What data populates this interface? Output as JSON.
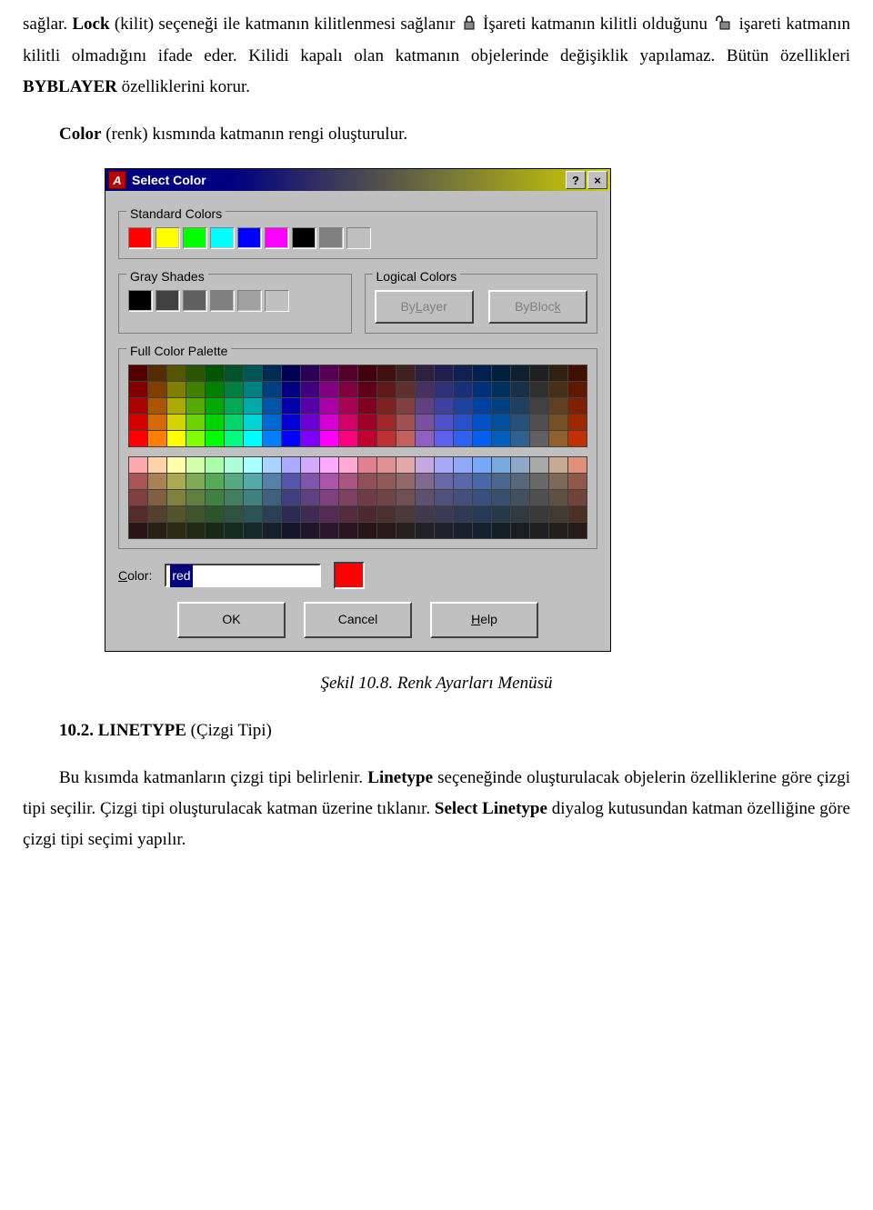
{
  "text": {
    "p1_a": "sağlar. ",
    "p1_bold1": "Lock",
    "p1_b": " (kilit) seçeneği ile katmanın kilitlenmesi sağlanır ",
    "p1_c": " İşareti katmanın kilitli olduğunu ",
    "p1_d": " işareti katmanın kilitli olmadığını ifade eder. Kilidi kapalı olan katmanın objelerinde değişiklik yapılamaz. Bütün özellikleri ",
    "p1_bold2": "BYBLAYER",
    "p1_e": " özelliklerini korur.",
    "p2_a": "Color",
    "p2_b": " (renk) kısmında katmanın rengi oluşturulur.",
    "caption": "Şekil 10.8. Renk Ayarları Menüsü",
    "h1_a": "10.2. LINETYPE",
    "h1_b": " (Çizgi Tipi)",
    "p3_a": "Bu kısımda katmanların çizgi tipi belirlenir. ",
    "p3_bold1": "Linetype",
    "p3_b": " seçeneğinde oluşturulacak objelerin özelliklerine göre çizgi tipi seçilir. Çizgi tipi oluşturulacak katman üzerine tıklanır. ",
    "p3_bold2": "Select Linetype",
    "p3_c": " diyalog kutusundan katman özelliğine göre çizgi tipi seçimi yapılır."
  },
  "dialog": {
    "title": "Select Color",
    "app_glyph": "A",
    "help_btn": "?",
    "close_btn": "×",
    "group_standard": "Standard Colors",
    "group_gray": "Gray Shades",
    "group_logical": "Logical Colors",
    "group_full": "Full Color Palette",
    "bylayer": "ByLayer",
    "byblock": "ByBlock",
    "color_label": "Color:",
    "color_value": "red",
    "ok": "OK",
    "cancel": "Cancel",
    "help": "Help",
    "standard_colors": [
      "#ff0000",
      "#ffff00",
      "#00ff00",
      "#00ffff",
      "#0000ff",
      "#ff00ff",
      "#000000",
      "#808080",
      "#c0c0c0"
    ],
    "gray_shades": [
      "#000000",
      "#404040",
      "#606060",
      "#808080",
      "#a0a0a0",
      "#c0c0c0"
    ],
    "preview_color": "#ff0000",
    "palette_top": [
      [
        "#550000",
        "#552b00",
        "#555500",
        "#2b5500",
        "#005500",
        "#00552b",
        "#005555",
        "#002b55",
        "#000055",
        "#2b0055",
        "#550055",
        "#55002b",
        "#400010",
        "#401010",
        "#402020",
        "#302040",
        "#202050",
        "#102050",
        "#002050",
        "#002040",
        "#102030",
        "#202020",
        "#302010",
        "#401000"
      ],
      [
        "#800000",
        "#804000",
        "#808000",
        "#408000",
        "#008000",
        "#008040",
        "#008080",
        "#004080",
        "#000080",
        "#400080",
        "#800080",
        "#800040",
        "#600018",
        "#601818",
        "#603030",
        "#483060",
        "#303078",
        "#183078",
        "#003078",
        "#003060",
        "#183048",
        "#303030",
        "#483018",
        "#601800"
      ],
      [
        "#aa0000",
        "#aa5500",
        "#aaaa00",
        "#55aa00",
        "#00aa00",
        "#00aa55",
        "#00aaaa",
        "#0055aa",
        "#0000aa",
        "#5500aa",
        "#aa00aa",
        "#aa0055",
        "#800020",
        "#802020",
        "#804040",
        "#604080",
        "#4040a0",
        "#2040a0",
        "#0040a0",
        "#004080",
        "#204060",
        "#404040",
        "#604020",
        "#802000"
      ],
      [
        "#d40000",
        "#d46a00",
        "#d4d400",
        "#6ad400",
        "#00d400",
        "#00d46a",
        "#00d4d4",
        "#006ad4",
        "#0000d4",
        "#6a00d4",
        "#d400d4",
        "#d4006a",
        "#a00028",
        "#a02828",
        "#a05050",
        "#7850a0",
        "#5050c8",
        "#2850c8",
        "#0050c8",
        "#0050a0",
        "#285078",
        "#505050",
        "#785028",
        "#a02800"
      ],
      [
        "#ff0000",
        "#ff8000",
        "#ffff00",
        "#80ff00",
        "#00ff00",
        "#00ff80",
        "#00ffff",
        "#0080ff",
        "#0000ff",
        "#8000ff",
        "#ff00ff",
        "#ff0080",
        "#c00030",
        "#c03030",
        "#c06060",
        "#9060c0",
        "#6060f0",
        "#3060f0",
        "#0060f0",
        "#0060c0",
        "#306090",
        "#606060",
        "#906030",
        "#c03000"
      ]
    ],
    "palette_bottom": [
      [
        "#ffaaaa",
        "#ffd4aa",
        "#ffffaa",
        "#d4ffaa",
        "#aaffaa",
        "#aaffd4",
        "#aaffff",
        "#aad4ff",
        "#aaaaff",
        "#d4aaff",
        "#ffaaff",
        "#ffaad4",
        "#e08090",
        "#e09090",
        "#e0a8a8",
        "#c8a8e0",
        "#a8a8f8",
        "#90a8f8",
        "#78a8f8",
        "#78a8e0",
        "#90a8c8",
        "#a8a8a8",
        "#c8a890",
        "#e09078"
      ],
      [
        "#aa5555",
        "#aa8055",
        "#aaaa55",
        "#80aa55",
        "#55aa55",
        "#55aa80",
        "#55aaaa",
        "#5580aa",
        "#5555aa",
        "#8055aa",
        "#aa55aa",
        "#aa5580",
        "#905058",
        "#905858",
        "#906868",
        "#806890",
        "#6868a8",
        "#5868a8",
        "#4868a8",
        "#486890",
        "#586878",
        "#686868",
        "#806858",
        "#905848"
      ],
      [
        "#804040",
        "#806040",
        "#808040",
        "#608040",
        "#408040",
        "#408060",
        "#408080",
        "#406080",
        "#404080",
        "#604080",
        "#804080",
        "#804060",
        "#703c44",
        "#704444",
        "#705050",
        "#605070",
        "#50507c",
        "#44507c",
        "#38507c",
        "#385070",
        "#445060",
        "#505050",
        "#605044",
        "#704438"
      ],
      [
        "#552b2b",
        "#55402b",
        "#55552b",
        "#40552b",
        "#2b552b",
        "#2b5540",
        "#2b5555",
        "#2b4055",
        "#2b2b55",
        "#402b55",
        "#552b55",
        "#552b40",
        "#4c2830",
        "#4c3030",
        "#4c3a3a",
        "#403a4c",
        "#3a3a56",
        "#303a56",
        "#263a56",
        "#263a4c",
        "#303a40",
        "#3a3a3a",
        "#403a30",
        "#4c3026"
      ],
      [
        "#2b1515",
        "#2b2015",
        "#2b2b15",
        "#202b15",
        "#152b15",
        "#152b20",
        "#152b2b",
        "#15202b",
        "#15152b",
        "#20152b",
        "#2b152b",
        "#2b1520",
        "#28161a",
        "#281a1a",
        "#282020",
        "#222028",
        "#20202e",
        "#1a202e",
        "#14202e",
        "#142028",
        "#1a2022",
        "#202020",
        "#22201a",
        "#281a14"
      ]
    ]
  }
}
